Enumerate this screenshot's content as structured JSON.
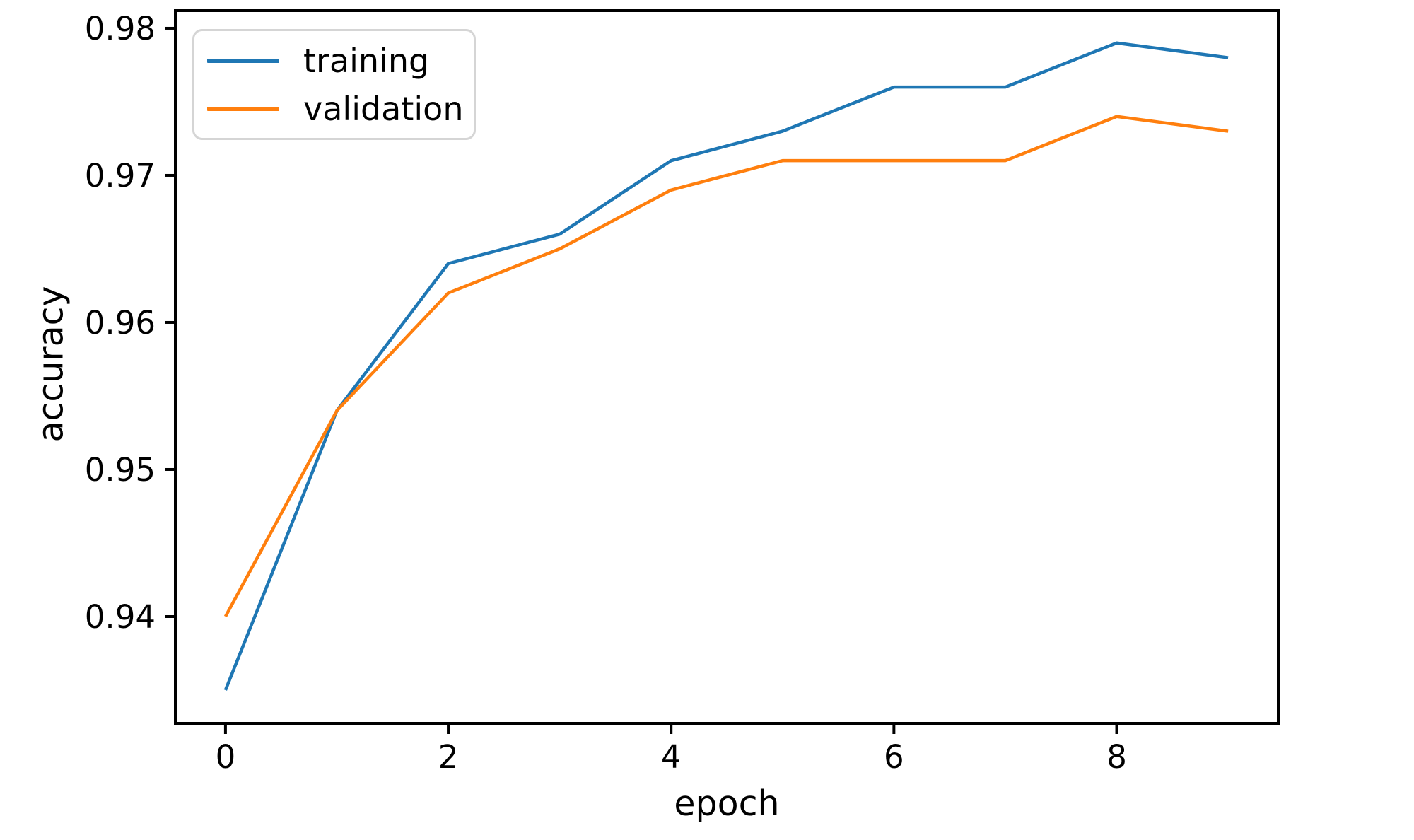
{
  "figure": {
    "background": "#ffffff",
    "axis_color": "#000000"
  },
  "chart_data": {
    "type": "line",
    "title": "",
    "xlabel": "epoch",
    "ylabel": "accuracy",
    "x": [
      0,
      1,
      2,
      3,
      4,
      5,
      6,
      7,
      8,
      9
    ],
    "series": [
      {
        "name": "training",
        "color": "#1f77b4",
        "values": [
          0.935,
          0.954,
          0.964,
          0.966,
          0.971,
          0.973,
          0.976,
          0.976,
          0.979,
          0.978
        ]
      },
      {
        "name": "validation",
        "color": "#ff7f0e",
        "values": [
          0.94,
          0.954,
          0.962,
          0.965,
          0.969,
          0.971,
          0.971,
          0.971,
          0.974,
          0.973
        ]
      }
    ],
    "xticks": {
      "values": [
        0,
        2,
        4,
        6,
        8
      ],
      "labels": [
        "0",
        "2",
        "4",
        "6",
        "8"
      ]
    },
    "yticks": {
      "values": [
        0.94,
        0.95,
        0.96,
        0.97,
        0.98
      ],
      "labels": [
        "0.94",
        "0.95",
        "0.96",
        "0.97",
        "0.98"
      ]
    },
    "xlim": [
      -0.45,
      9.45
    ],
    "ylim": [
      0.93274,
      0.9812
    ],
    "grid": false,
    "legend": {
      "position": "upper left"
    }
  }
}
